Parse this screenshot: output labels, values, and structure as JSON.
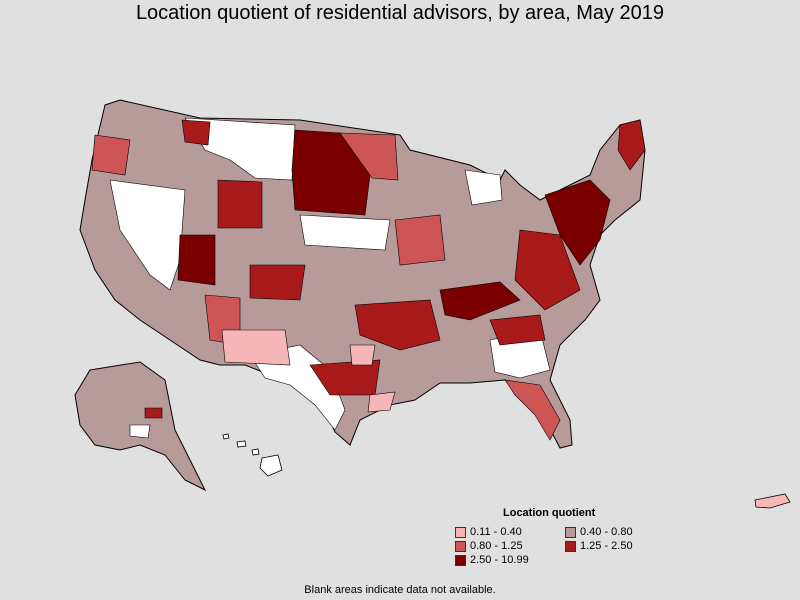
{
  "title": "Location quotient of residential advisors, by area, May 2019",
  "legend": {
    "title": "Location quotient",
    "items": [
      {
        "label": "0.11 - 0.40",
        "color": "#f7b7b7"
      },
      {
        "label": "0.40 - 0.80",
        "color": "#b79a9a"
      },
      {
        "label": "0.80 - 1.25",
        "color": "#cd5555"
      },
      {
        "label": "1.25 - 2.50",
        "color": "#a81a1a"
      },
      {
        "label": "2.50 - 10.99",
        "color": "#7a0000"
      }
    ]
  },
  "footnote": "Blank areas indicate data not available.",
  "colors": {
    "background": "#e0e0e0",
    "no_data": "#ffffff",
    "border": "#000000"
  }
}
